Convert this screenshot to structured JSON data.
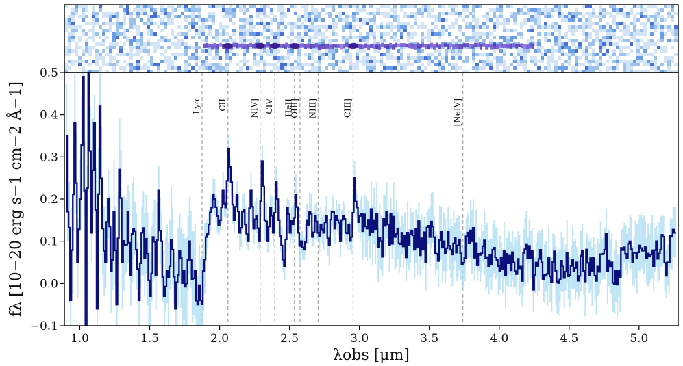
{
  "chart_data": {
    "type": "line",
    "subtype": "step spectrum with 2D spectrum panel",
    "title": "",
    "xlabel": "λobs [μm]",
    "ylabel": "fλ [10−20 erg s−1 cm−2 Å−1]",
    "xlim": [
      0.89,
      5.28
    ],
    "ylim": [
      -0.1,
      0.5
    ],
    "xticks": [
      1.0,
      1.5,
      2.0,
      2.5,
      3.0,
      3.5,
      4.0,
      4.5,
      5.0
    ],
    "xtick_labels": [
      "1.0",
      "1.5",
      "2.0",
      "2.5",
      "3.0",
      "3.5",
      "4.0",
      "4.5",
      "5.0"
    ],
    "yticks": [
      -0.1,
      0.0,
      0.1,
      0.2,
      0.3,
      0.4,
      0.5
    ],
    "ytick_labels": [
      "−0.1",
      "0.0",
      "0.1",
      "0.2",
      "0.3",
      "0.4",
      "0.5"
    ],
    "grid": false,
    "colors": {
      "flux": "#0a0f7a",
      "error": "#a9dcf2",
      "lines": "#aaaaaa",
      "panel_light": "#b9d4f2",
      "panel_dark": "#3a1d8f"
    },
    "emission_lines": [
      {
        "label": "Lyα",
        "x": 1.875
      },
      {
        "label": "CII",
        "x": 2.06
      },
      {
        "label": "NIV]",
        "x": 2.29
      },
      {
        "label": "CIV",
        "x": 2.395
      },
      {
        "label": "HeII",
        "x": 2.535
      },
      {
        "label": "OIII]",
        "x": 2.575
      },
      {
        "label": "NIII]",
        "x": 2.705
      },
      {
        "label": "CIII]",
        "x": 2.955
      },
      {
        "label": "[NeIV]",
        "x": 3.74
      }
    ],
    "series": [
      {
        "style": "step",
        "x": [
          0.9,
          0.93,
          0.96,
          0.98,
          1.0,
          1.02,
          1.04,
          1.06,
          1.08,
          1.1,
          1.12,
          1.14,
          1.16,
          1.18,
          1.2,
          1.22,
          1.24,
          1.26,
          1.28,
          1.3,
          1.32,
          1.34,
          1.36,
          1.38,
          1.4,
          1.42,
          1.44,
          1.46,
          1.48,
          1.5,
          1.52,
          1.54,
          1.56,
          1.58,
          1.6,
          1.62,
          1.64,
          1.66,
          1.68,
          1.7,
          1.72,
          1.74,
          1.76,
          1.78,
          1.8,
          1.82,
          1.84,
          1.86,
          1.88,
          1.9,
          1.92,
          1.94,
          1.96,
          1.98,
          2.0,
          2.02,
          2.04,
          2.06,
          2.08,
          2.1,
          2.12,
          2.14,
          2.16,
          2.18,
          2.2,
          2.22,
          2.24,
          2.26,
          2.28,
          2.3,
          2.32,
          2.34,
          2.36,
          2.38,
          2.4,
          2.42,
          2.44,
          2.46,
          2.48,
          2.5,
          2.52,
          2.54,
          2.56,
          2.58,
          2.6,
          2.62,
          2.64,
          2.66,
          2.68,
          2.7,
          2.72,
          2.74,
          2.76,
          2.78,
          2.8,
          2.82,
          2.84,
          2.86,
          2.88,
          2.9,
          2.92,
          2.94,
          2.96,
          2.98,
          3.0,
          3.05,
          3.1,
          3.15,
          3.2,
          3.25,
          3.3,
          3.35,
          3.4,
          3.45,
          3.5,
          3.55,
          3.6,
          3.65,
          3.7,
          3.75,
          3.8,
          3.85,
          3.9,
          3.95,
          4.0,
          4.05,
          4.1,
          4.15,
          4.2,
          4.25,
          4.3,
          4.35,
          4.4,
          4.45,
          4.5,
          4.55,
          4.6,
          4.65,
          4.7,
          4.75,
          4.8,
          4.85,
          4.9,
          4.95,
          5.0,
          5.05,
          5.1,
          5.15,
          5.2,
          5.25
        ],
        "values": [
          0.35,
          -0.04,
          0.38,
          0.05,
          0.2,
          0.49,
          -0.1,
          0.5,
          0.12,
          0.38,
          -0.06,
          0.42,
          0.13,
          0.05,
          0.2,
          0.03,
          0.17,
          -0.05,
          0.27,
          0.05,
          0.09,
          0.17,
          0.02,
          0.13,
          0.08,
          -0.04,
          0.12,
          0.06,
          0.07,
          -0.03,
          0.11,
          0.02,
          0.22,
          0.1,
          -0.03,
          0.03,
          0.04,
          0.08,
          -0.06,
          0.02,
          0.06,
          0.03,
          0.0,
          0.1,
          0.01,
          0.03,
          -0.05,
          -0.04,
          0.03,
          0.11,
          0.14,
          0.18,
          0.2,
          0.16,
          0.15,
          0.22,
          0.18,
          0.32,
          0.24,
          0.15,
          0.21,
          0.12,
          0.17,
          0.14,
          0.1,
          0.22,
          0.13,
          0.16,
          0.1,
          0.29,
          0.15,
          0.1,
          0.18,
          0.12,
          0.24,
          0.15,
          0.09,
          0.04,
          0.18,
          0.12,
          0.14,
          0.21,
          0.12,
          0.1,
          0.08,
          0.15,
          0.17,
          0.11,
          0.16,
          0.12,
          0.14,
          0.12,
          0.16,
          0.09,
          0.17,
          0.13,
          0.15,
          0.1,
          0.16,
          0.12,
          0.14,
          0.11,
          0.25,
          0.18,
          0.16,
          0.13,
          0.15,
          0.1,
          0.14,
          0.11,
          0.12,
          0.09,
          0.13,
          0.08,
          0.11,
          0.07,
          0.1,
          0.08,
          0.09,
          0.06,
          0.1,
          0.07,
          0.06,
          0.08,
          0.03,
          0.07,
          0.05,
          0.04,
          0.06,
          0.02,
          0.05,
          0.06,
          0.03,
          0.04,
          0.02,
          0.05,
          0.03,
          0.06,
          0.04,
          0.08,
          0.05,
          0.03,
          0.07,
          0.05,
          0.09,
          0.06,
          0.04,
          0.08,
          0.05,
          0.12
        ]
      }
    ]
  },
  "panel_2d": {
    "trace_start": 1.88,
    "trace_end": 4.25,
    "bright_spots": [
      2.06,
      2.29,
      2.395,
      2.535,
      2.955
    ]
  }
}
